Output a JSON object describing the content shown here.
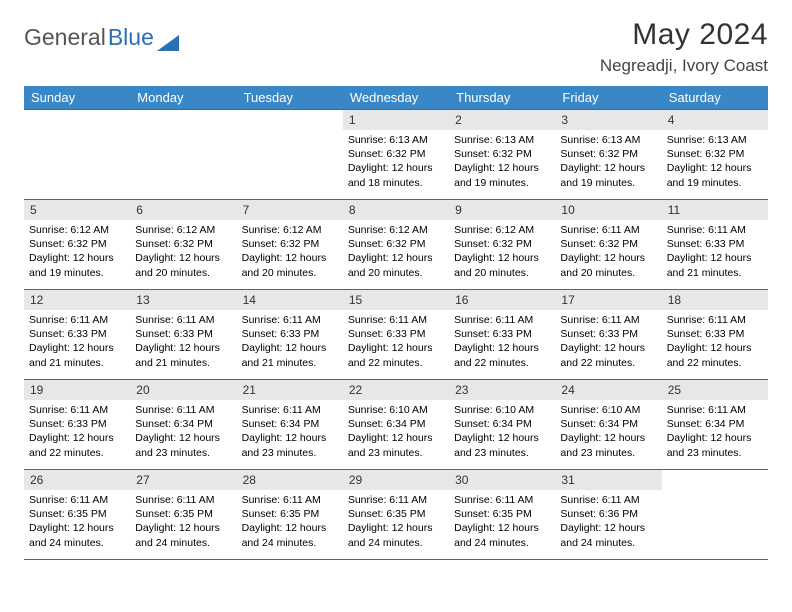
{
  "brand": {
    "part1": "General",
    "part2": "Blue"
  },
  "title": "May 2024",
  "location": "Negreadji, Ivory Coast",
  "weekdays": [
    "Sunday",
    "Monday",
    "Tuesday",
    "Wednesday",
    "Thursday",
    "Friday",
    "Saturday"
  ],
  "colors": {
    "header_bg": "#3a87c7",
    "header_text": "#ffffff",
    "rule": "#2a6fb5",
    "daynum_bg": "#e7e7e7",
    "brand_gray": "#555555",
    "brand_blue": "#2a6fb5"
  },
  "weeks": [
    [
      {
        "day": "",
        "sunrise": "",
        "sunset": "",
        "daylight": ""
      },
      {
        "day": "",
        "sunrise": "",
        "sunset": "",
        "daylight": ""
      },
      {
        "day": "",
        "sunrise": "",
        "sunset": "",
        "daylight": ""
      },
      {
        "day": "1",
        "sunrise": "Sunrise: 6:13 AM",
        "sunset": "Sunset: 6:32 PM",
        "daylight": "Daylight: 12 hours and 18 minutes."
      },
      {
        "day": "2",
        "sunrise": "Sunrise: 6:13 AM",
        "sunset": "Sunset: 6:32 PM",
        "daylight": "Daylight: 12 hours and 19 minutes."
      },
      {
        "day": "3",
        "sunrise": "Sunrise: 6:13 AM",
        "sunset": "Sunset: 6:32 PM",
        "daylight": "Daylight: 12 hours and 19 minutes."
      },
      {
        "day": "4",
        "sunrise": "Sunrise: 6:13 AM",
        "sunset": "Sunset: 6:32 PM",
        "daylight": "Daylight: 12 hours and 19 minutes."
      }
    ],
    [
      {
        "day": "5",
        "sunrise": "Sunrise: 6:12 AM",
        "sunset": "Sunset: 6:32 PM",
        "daylight": "Daylight: 12 hours and 19 minutes."
      },
      {
        "day": "6",
        "sunrise": "Sunrise: 6:12 AM",
        "sunset": "Sunset: 6:32 PM",
        "daylight": "Daylight: 12 hours and 20 minutes."
      },
      {
        "day": "7",
        "sunrise": "Sunrise: 6:12 AM",
        "sunset": "Sunset: 6:32 PM",
        "daylight": "Daylight: 12 hours and 20 minutes."
      },
      {
        "day": "8",
        "sunrise": "Sunrise: 6:12 AM",
        "sunset": "Sunset: 6:32 PM",
        "daylight": "Daylight: 12 hours and 20 minutes."
      },
      {
        "day": "9",
        "sunrise": "Sunrise: 6:12 AM",
        "sunset": "Sunset: 6:32 PM",
        "daylight": "Daylight: 12 hours and 20 minutes."
      },
      {
        "day": "10",
        "sunrise": "Sunrise: 6:11 AM",
        "sunset": "Sunset: 6:32 PM",
        "daylight": "Daylight: 12 hours and 20 minutes."
      },
      {
        "day": "11",
        "sunrise": "Sunrise: 6:11 AM",
        "sunset": "Sunset: 6:33 PM",
        "daylight": "Daylight: 12 hours and 21 minutes."
      }
    ],
    [
      {
        "day": "12",
        "sunrise": "Sunrise: 6:11 AM",
        "sunset": "Sunset: 6:33 PM",
        "daylight": "Daylight: 12 hours and 21 minutes."
      },
      {
        "day": "13",
        "sunrise": "Sunrise: 6:11 AM",
        "sunset": "Sunset: 6:33 PM",
        "daylight": "Daylight: 12 hours and 21 minutes."
      },
      {
        "day": "14",
        "sunrise": "Sunrise: 6:11 AM",
        "sunset": "Sunset: 6:33 PM",
        "daylight": "Daylight: 12 hours and 21 minutes."
      },
      {
        "day": "15",
        "sunrise": "Sunrise: 6:11 AM",
        "sunset": "Sunset: 6:33 PM",
        "daylight": "Daylight: 12 hours and 22 minutes."
      },
      {
        "day": "16",
        "sunrise": "Sunrise: 6:11 AM",
        "sunset": "Sunset: 6:33 PM",
        "daylight": "Daylight: 12 hours and 22 minutes."
      },
      {
        "day": "17",
        "sunrise": "Sunrise: 6:11 AM",
        "sunset": "Sunset: 6:33 PM",
        "daylight": "Daylight: 12 hours and 22 minutes."
      },
      {
        "day": "18",
        "sunrise": "Sunrise: 6:11 AM",
        "sunset": "Sunset: 6:33 PM",
        "daylight": "Daylight: 12 hours and 22 minutes."
      }
    ],
    [
      {
        "day": "19",
        "sunrise": "Sunrise: 6:11 AM",
        "sunset": "Sunset: 6:33 PM",
        "daylight": "Daylight: 12 hours and 22 minutes."
      },
      {
        "day": "20",
        "sunrise": "Sunrise: 6:11 AM",
        "sunset": "Sunset: 6:34 PM",
        "daylight": "Daylight: 12 hours and 23 minutes."
      },
      {
        "day": "21",
        "sunrise": "Sunrise: 6:11 AM",
        "sunset": "Sunset: 6:34 PM",
        "daylight": "Daylight: 12 hours and 23 minutes."
      },
      {
        "day": "22",
        "sunrise": "Sunrise: 6:10 AM",
        "sunset": "Sunset: 6:34 PM",
        "daylight": "Daylight: 12 hours and 23 minutes."
      },
      {
        "day": "23",
        "sunrise": "Sunrise: 6:10 AM",
        "sunset": "Sunset: 6:34 PM",
        "daylight": "Daylight: 12 hours and 23 minutes."
      },
      {
        "day": "24",
        "sunrise": "Sunrise: 6:10 AM",
        "sunset": "Sunset: 6:34 PM",
        "daylight": "Daylight: 12 hours and 23 minutes."
      },
      {
        "day": "25",
        "sunrise": "Sunrise: 6:11 AM",
        "sunset": "Sunset: 6:34 PM",
        "daylight": "Daylight: 12 hours and 23 minutes."
      }
    ],
    [
      {
        "day": "26",
        "sunrise": "Sunrise: 6:11 AM",
        "sunset": "Sunset: 6:35 PM",
        "daylight": "Daylight: 12 hours and 24 minutes."
      },
      {
        "day": "27",
        "sunrise": "Sunrise: 6:11 AM",
        "sunset": "Sunset: 6:35 PM",
        "daylight": "Daylight: 12 hours and 24 minutes."
      },
      {
        "day": "28",
        "sunrise": "Sunrise: 6:11 AM",
        "sunset": "Sunset: 6:35 PM",
        "daylight": "Daylight: 12 hours and 24 minutes."
      },
      {
        "day": "29",
        "sunrise": "Sunrise: 6:11 AM",
        "sunset": "Sunset: 6:35 PM",
        "daylight": "Daylight: 12 hours and 24 minutes."
      },
      {
        "day": "30",
        "sunrise": "Sunrise: 6:11 AM",
        "sunset": "Sunset: 6:35 PM",
        "daylight": "Daylight: 12 hours and 24 minutes."
      },
      {
        "day": "31",
        "sunrise": "Sunrise: 6:11 AM",
        "sunset": "Sunset: 6:36 PM",
        "daylight": "Daylight: 12 hours and 24 minutes."
      },
      {
        "day": "",
        "sunrise": "",
        "sunset": "",
        "daylight": ""
      }
    ]
  ]
}
